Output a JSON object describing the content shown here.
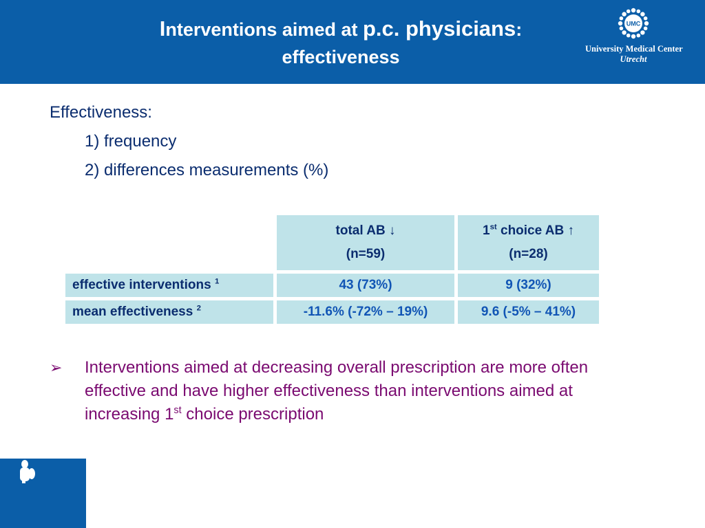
{
  "header": {
    "title_line1_first_letter": "I",
    "title_line1_rest_small": "nterventions aimed at ",
    "title_line1_big": "p.c. physicians",
    "title_line1_colon": ":",
    "title_line2": "effectiveness",
    "logo": {
      "emblem_text": "UMC",
      "name": "University Medical Center",
      "city": "Utrecht",
      "icon": "sun-emblem-icon"
    }
  },
  "body": {
    "heading": "Effectiveness:",
    "items": [
      "1) frequency",
      "2) differences measurements (%)"
    ]
  },
  "table": {
    "columns": [
      {
        "label": "total AB ↓",
        "n": "(n=59)"
      },
      {
        "label_prefix": "1",
        "label_sup": "st",
        "label_rest": " choice AB ↑",
        "n": "(n=28)"
      }
    ],
    "rows": [
      {
        "label": "effective interventions ",
        "sup": "1",
        "values": [
          "43 (73%)",
          "9 (32%)"
        ]
      },
      {
        "label": "mean effectiveness ",
        "sup": "2",
        "values": [
          "-11.6% (-72% – 19%)",
          "9.6 (-5% – 41%)"
        ]
      }
    ]
  },
  "conclusion": {
    "bullet": "➢",
    "text_main": "Interventions aimed at decreasing overall  prescription are more often effective and have higher effectiveness than interventions aimed at increasing 1",
    "text_sup": "st",
    "text_end": " choice prescription"
  },
  "colors": {
    "header_blue": "#0b5ea8",
    "table_cell": "#bfe3e9",
    "text_navy": "#0b2d6f",
    "value_blue": "#1155b5",
    "conclusion_purple": "#7a0a70"
  }
}
